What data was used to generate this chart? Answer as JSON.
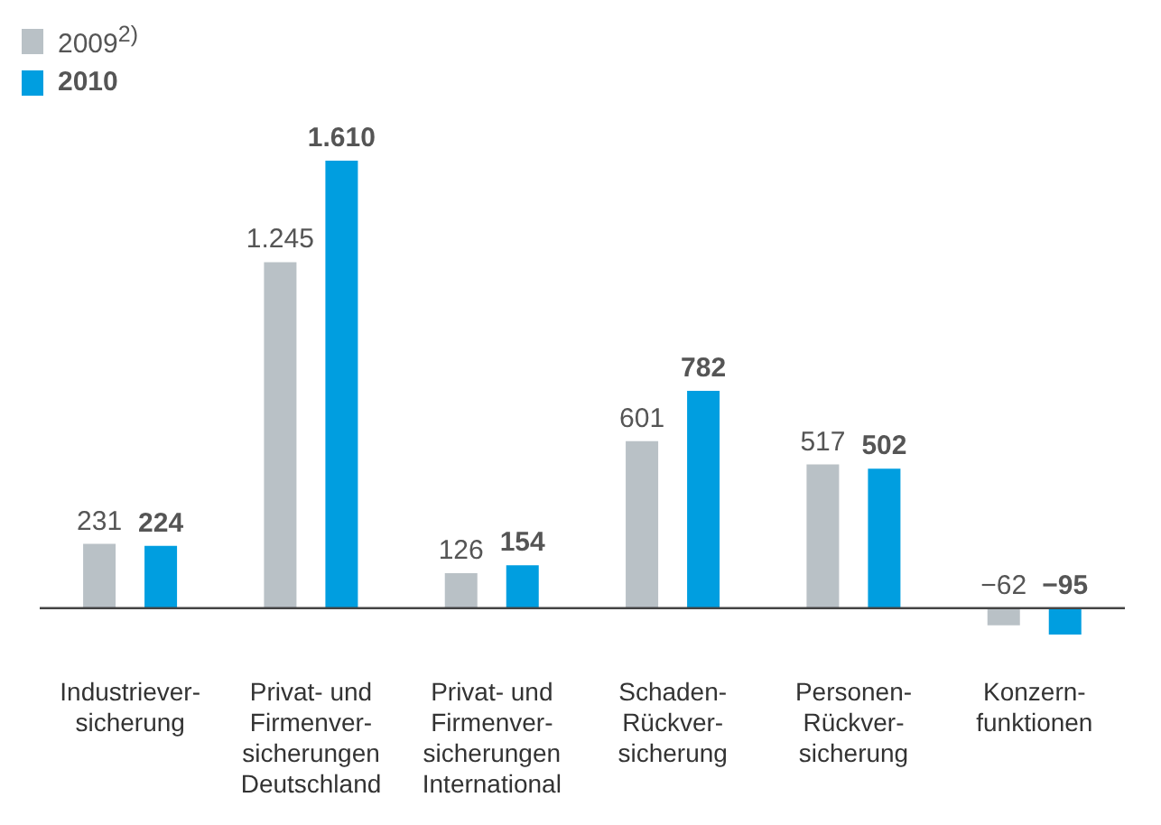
{
  "chart_data": {
    "type": "bar",
    "categories": [
      "Industriever-\nsicherung",
      "Privat- und\nFirmenver-\nsicherungen\nDeutschland",
      "Privat- und\nFirmenver-\nsicherungen\nInternational",
      "Schaden-\nRückver-\nsicherung",
      "Personen-\nRückver-\nsicherung",
      "Konzern-\nfunktionen"
    ],
    "series": [
      {
        "name": "2009$^{2)}$",
        "color": "#b9c1c6",
        "values": [
          231,
          1245,
          126,
          601,
          517,
          -62
        ],
        "value_labels": [
          "231",
          "1.245",
          "126",
          "601",
          "517",
          "−62"
        ]
      },
      {
        "name": "2010",
        "color": "#009ee0",
        "values": [
          224,
          1610,
          154,
          782,
          502,
          -95
        ],
        "value_labels": [
          "224",
          "1.610",
          "154",
          "782",
          "502",
          "−95"
        ]
      }
    ],
    "legend": "top left"
  }
}
